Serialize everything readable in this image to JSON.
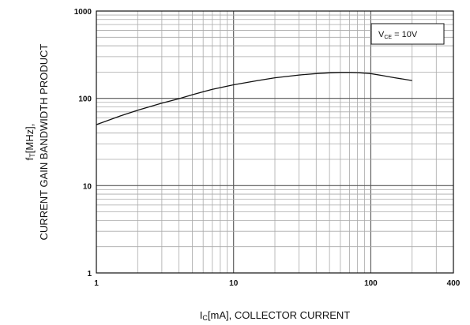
{
  "chart_data": {
    "type": "line",
    "scale": {
      "x": "log",
      "y": "log"
    },
    "grid": true,
    "xlim": [
      1,
      400
    ],
    "ylim": [
      1,
      1000
    ],
    "x_ticks": [
      {
        "value": 1,
        "label": "1"
      },
      {
        "value": 10,
        "label": "10"
      },
      {
        "value": 100,
        "label": "100"
      },
      {
        "value": 400,
        "label": "400"
      }
    ],
    "y_ticks": [
      {
        "value": 1,
        "label": "1"
      },
      {
        "value": 10,
        "label": "10"
      },
      {
        "value": 100,
        "label": "100"
      },
      {
        "value": 1000,
        "label": "1000"
      }
    ],
    "xlabel": {
      "main": "I",
      "sub": "C",
      "rest": "[mA], COLLECTOR CURRENT"
    },
    "ylabel": {
      "line1": {
        "main": "f",
        "sub": "T",
        "rest": "[MHz],"
      },
      "line2": "CURRENT GAIN BANDWIDTH PRODUCT"
    },
    "annotation": {
      "main": "V",
      "sub": "CE",
      "rest": " = 10V"
    },
    "series": [
      {
        "x": [
          1,
          1.5,
          2,
          3,
          4,
          5,
          7,
          10,
          15,
          20,
          30,
          40,
          50,
          60,
          70,
          80,
          100,
          120,
          150,
          200
        ],
        "y": [
          50,
          63,
          73,
          88,
          99,
          110,
          127,
          143,
          160,
          172,
          185,
          192,
          196,
          198,
          198,
          197,
          192,
          183,
          172,
          160
        ]
      }
    ]
  }
}
